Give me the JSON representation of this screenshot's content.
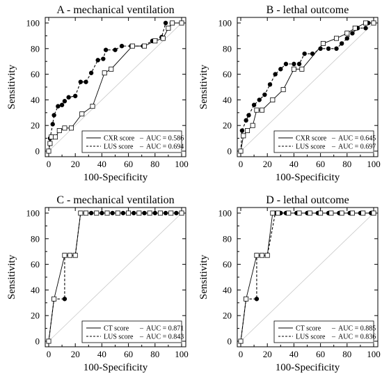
{
  "chart_data": [
    {
      "type": "line",
      "title": "A - mechanical ventilation",
      "xlabel": "100-Specificity",
      "ylabel": "Sensitivity",
      "xlim": [
        0,
        100
      ],
      "ylim": [
        0,
        100
      ],
      "xticks": [
        "0",
        "20",
        "40",
        "60",
        "80",
        "100"
      ],
      "yticks": [
        "0",
        "20",
        "40",
        "60",
        "80",
        "100"
      ],
      "grid": false,
      "diagonal_reference": true,
      "legend_position": "bottom-right",
      "series": [
        {
          "name": "CXR score",
          "auc_label": "AUC = 0.586",
          "style": "solid",
          "marker": "open-square",
          "points": [
            [
              0,
              0
            ],
            [
              1,
              6
            ],
            [
              2,
              11
            ],
            [
              5,
              11
            ],
            [
              8,
              16
            ],
            [
              12,
              18
            ],
            [
              17,
              18
            ],
            [
              25,
              29
            ],
            [
              33,
              35
            ],
            [
              42,
              61
            ],
            [
              47,
              64
            ],
            [
              63,
              82
            ],
            [
              72,
              82
            ],
            [
              80,
              86
            ],
            [
              86,
              88
            ],
            [
              90,
              96
            ],
            [
              93,
              100
            ],
            [
              100,
              100
            ]
          ]
        },
        {
          "name": "LUS score",
          "auc_label": "AUC = 0.694",
          "style": "dashed",
          "marker": "filled-circle",
          "points": [
            [
              0,
              0
            ],
            [
              1,
              10
            ],
            [
              3,
              21
            ],
            [
              4,
              28
            ],
            [
              7,
              35
            ],
            [
              10,
              36
            ],
            [
              12,
              39
            ],
            [
              15,
              42
            ],
            [
              20,
              43
            ],
            [
              24,
              54
            ],
            [
              28,
              54
            ],
            [
              32,
              61
            ],
            [
              37,
              71
            ],
            [
              41,
              72
            ],
            [
              43,
              79
            ],
            [
              50,
              79
            ],
            [
              55,
              82
            ],
            [
              62,
              82
            ],
            [
              71,
              82
            ],
            [
              78,
              86
            ],
            [
              85,
              89
            ],
            [
              88,
              100
            ],
            [
              100,
              100
            ]
          ]
        }
      ]
    },
    {
      "type": "line",
      "title": "B - lethal outcome",
      "xlabel": "100-Specificity",
      "ylabel": "Sensitivity",
      "xlim": [
        0,
        100
      ],
      "ylim": [
        0,
        100
      ],
      "xticks": [
        "0",
        "20",
        "40",
        "60",
        "80",
        "100"
      ],
      "yticks": [
        "0",
        "20",
        "40",
        "60",
        "80",
        "100"
      ],
      "grid": false,
      "diagonal_reference": true,
      "legend_position": "bottom-right",
      "series": [
        {
          "name": "CXR score",
          "auc_label": "AUC = 0.645",
          "style": "solid",
          "marker": "open-square",
          "points": [
            [
              0,
              0
            ],
            [
              2,
              12
            ],
            [
              5,
              16
            ],
            [
              9,
              20
            ],
            [
              12,
              32
            ],
            [
              16,
              32
            ],
            [
              24,
              40
            ],
            [
              32,
              48
            ],
            [
              40,
              64
            ],
            [
              46,
              64
            ],
            [
              62,
              84
            ],
            [
              72,
              88
            ],
            [
              80,
              92
            ],
            [
              86,
              96
            ],
            [
              94,
              100
            ],
            [
              100,
              100
            ]
          ]
        },
        {
          "name": "LUS score",
          "auc_label": "AUC = 0.697",
          "style": "dashed",
          "marker": "filled-circle",
          "points": [
            [
              0,
              0
            ],
            [
              1,
              16
            ],
            [
              4,
              24
            ],
            [
              6,
              28
            ],
            [
              10,
              36
            ],
            [
              14,
              40
            ],
            [
              18,
              44
            ],
            [
              22,
              52
            ],
            [
              26,
              60
            ],
            [
              30,
              64
            ],
            [
              34,
              68
            ],
            [
              40,
              68
            ],
            [
              44,
              68
            ],
            [
              48,
              76
            ],
            [
              54,
              76
            ],
            [
              60,
              80
            ],
            [
              66,
              80
            ],
            [
              72,
              80
            ],
            [
              76,
              84
            ],
            [
              80,
              88
            ],
            [
              84,
              92
            ],
            [
              88,
              96
            ],
            [
              94,
              96
            ],
            [
              96,
              100
            ],
            [
              100,
              100
            ]
          ]
        }
      ]
    },
    {
      "type": "line",
      "title": "C - mechanical ventilation",
      "xlabel": "100-Specificity",
      "ylabel": "Sensitivity",
      "xlim": [
        0,
        100
      ],
      "ylim": [
        0,
        100
      ],
      "xticks": [
        "0",
        "20",
        "40",
        "60",
        "80",
        "100"
      ],
      "yticks": [
        "0",
        "20",
        "40",
        "60",
        "80",
        "100"
      ],
      "grid": false,
      "diagonal_reference": true,
      "legend_position": "bottom-right",
      "series": [
        {
          "name": "CT score",
          "auc_label": "AUC = 0.871",
          "style": "solid",
          "marker": "open-square",
          "points": [
            [
              0,
              0
            ],
            [
              4,
              33
            ],
            [
              12,
              67
            ],
            [
              16,
              67
            ],
            [
              20,
              67
            ],
            [
              24,
              100
            ],
            [
              28,
              100
            ],
            [
              36,
              100
            ],
            [
              44,
              100
            ],
            [
              52,
              100
            ],
            [
              60,
              100
            ],
            [
              68,
              100
            ],
            [
              76,
              100
            ],
            [
              84,
              100
            ],
            [
              92,
              100
            ],
            [
              100,
              100
            ]
          ]
        },
        {
          "name": "LUS score",
          "auc_label": "AUC = 0.843",
          "style": "dashed",
          "marker": "filled-circle",
          "points": [
            [
              0,
              0
            ],
            [
              4,
              33
            ],
            [
              12,
              33
            ],
            [
              12,
              67
            ],
            [
              20,
              67
            ],
            [
              24,
              100
            ],
            [
              28,
              100
            ],
            [
              32,
              100
            ],
            [
              40,
              100
            ],
            [
              48,
              100
            ],
            [
              56,
              100
            ],
            [
              64,
              100
            ],
            [
              72,
              100
            ],
            [
              80,
              100
            ],
            [
              88,
              100
            ],
            [
              96,
              100
            ],
            [
              100,
              100
            ]
          ]
        }
      ]
    },
    {
      "type": "line",
      "title": "D - lethal outcome",
      "xlabel": "100-Specificity",
      "ylabel": "Sensitivity",
      "xlim": [
        0,
        100
      ],
      "ylim": [
        0,
        100
      ],
      "xticks": [
        "0",
        "20",
        "40",
        "60",
        "80",
        "100"
      ],
      "yticks": [
        "0",
        "20",
        "40",
        "60",
        "80",
        "100"
      ],
      "grid": false,
      "diagonal_reference": true,
      "legend_position": "bottom-right",
      "series": [
        {
          "name": "CT score",
          "auc_label": "AUC = 0.885",
          "style": "solid",
          "marker": "open-square",
          "points": [
            [
              0,
              0
            ],
            [
              4,
              33
            ],
            [
              12,
              67
            ],
            [
              16,
              67
            ],
            [
              20,
              67
            ],
            [
              24,
              100
            ],
            [
              28,
              100
            ],
            [
              36,
              100
            ],
            [
              44,
              100
            ],
            [
              52,
              100
            ],
            [
              60,
              100
            ],
            [
              68,
              100
            ],
            [
              76,
              100
            ],
            [
              84,
              100
            ],
            [
              92,
              100
            ],
            [
              100,
              100
            ]
          ]
        },
        {
          "name": "LUS score",
          "auc_label": "AUC = 0.836",
          "style": "dashed",
          "marker": "filled-circle",
          "points": [
            [
              0,
              0
            ],
            [
              4,
              33
            ],
            [
              12,
              33
            ],
            [
              12,
              67
            ],
            [
              20,
              67
            ],
            [
              26,
              100
            ],
            [
              30,
              100
            ],
            [
              34,
              100
            ],
            [
              42,
              100
            ],
            [
              50,
              100
            ],
            [
              58,
              100
            ],
            [
              66,
              100
            ],
            [
              74,
              100
            ],
            [
              82,
              100
            ],
            [
              90,
              100
            ],
            [
              98,
              100
            ],
            [
              100,
              100
            ]
          ]
        }
      ]
    }
  ]
}
